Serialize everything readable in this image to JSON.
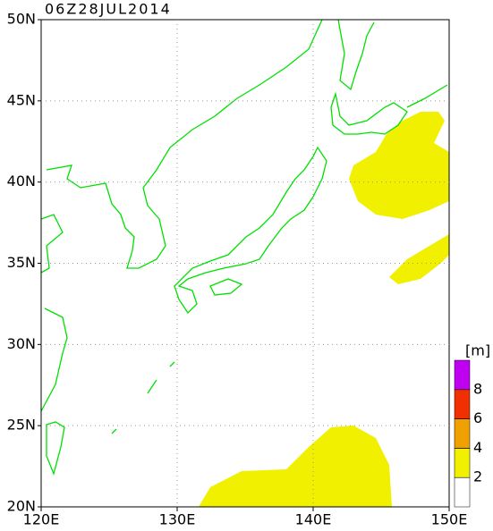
{
  "chart_data": {
    "type": "map",
    "title": "06Z28JUL2014",
    "xlim": [
      120,
      150
    ],
    "ylim": [
      20,
      50
    ],
    "xticks": [
      {
        "value": 120,
        "label": "120E"
      },
      {
        "value": 130,
        "label": "130E"
      },
      {
        "value": 140,
        "label": "140E"
      },
      {
        "value": 150,
        "label": "150E"
      }
    ],
    "yticks": [
      {
        "value": 20,
        "label": "20N"
      },
      {
        "value": 25,
        "label": "25N"
      },
      {
        "value": 30,
        "label": "30N"
      },
      {
        "value": 35,
        "label": "35N"
      },
      {
        "value": 40,
        "label": "40N"
      },
      {
        "value": 45,
        "label": "45N"
      },
      {
        "value": 50,
        "label": "50N"
      }
    ],
    "grid": true,
    "colorbar": {
      "unit": "[m]",
      "levels": [
        2,
        4,
        6,
        8
      ],
      "colors": [
        "#ffffff",
        "#f0f000",
        "#f0a000",
        "#f03000",
        "#c000f0"
      ]
    }
  }
}
